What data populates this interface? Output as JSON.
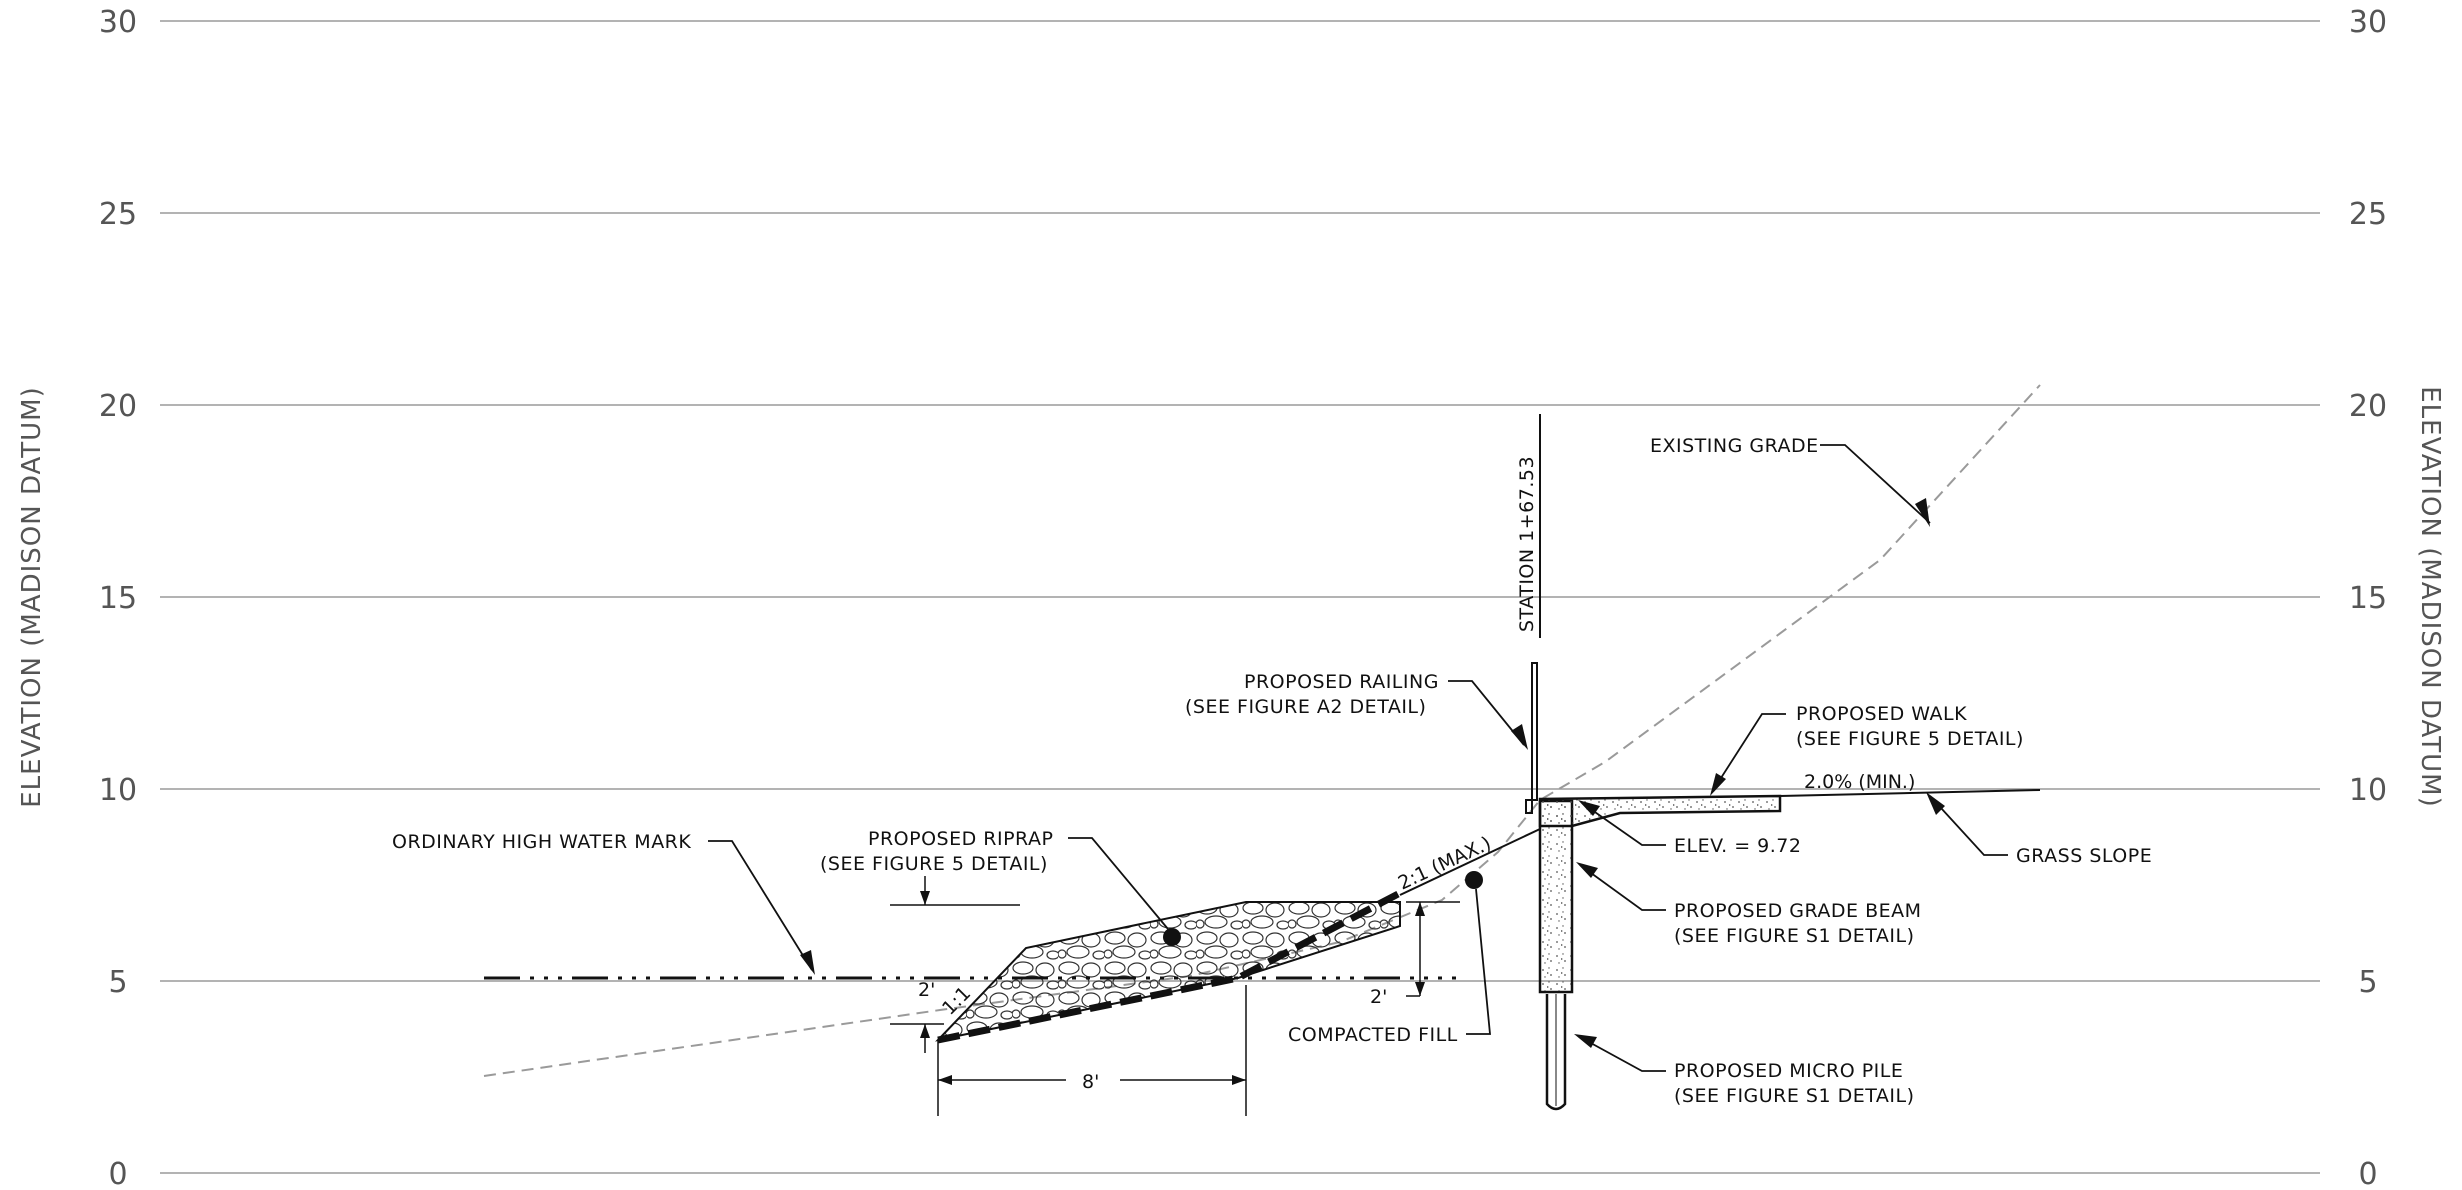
{
  "axis": {
    "left_title": "ELEVATION (MADISON DATUM)",
    "right_title": "ELEVATION (MADISON DATUM)",
    "ticks": [
      "0",
      "5",
      "10",
      "15",
      "20",
      "25",
      "30"
    ]
  },
  "labels": {
    "station": "STATION 1+67.53",
    "existing_grade": "EXISTING GRADE",
    "railing_1": "PROPOSED RAILING",
    "railing_2": "(SEE FIGURE A2 DETAIL)",
    "walk_1": "PROPOSED WALK",
    "walk_2": "(SEE FIGURE 5 DETAIL)",
    "slope_pct": "2.0% (MIN.)",
    "grass_slope": "GRASS SLOPE",
    "elev": "ELEV. = 9.72",
    "grade_beam_1": "PROPOSED GRADE BEAM",
    "grade_beam_2": "(SEE FIGURE S1 DETAIL)",
    "micro_pile_1": "PROPOSED MICRO PILE",
    "micro_pile_2": "(SEE FIGURE S1 DETAIL)",
    "ohwm": "ORDINARY HIGH WATER MARK",
    "riprap_1": "PROPOSED RIPRAP",
    "riprap_2": "(SEE FIGURE 5 DETAIL)",
    "compacted_fill": "COMPACTED FILL",
    "slope_2_1": "2:1 (MAX.)",
    "slope_1_1": "1:1",
    "dim_2ft_left": "2'",
    "dim_2ft_right": "2'",
    "dim_8ft": "8'"
  },
  "colors": {
    "grid": "#9a9a9a",
    "ink": "#111111",
    "existing_grade": "#9a9a9a",
    "axis_text": "#555555"
  }
}
